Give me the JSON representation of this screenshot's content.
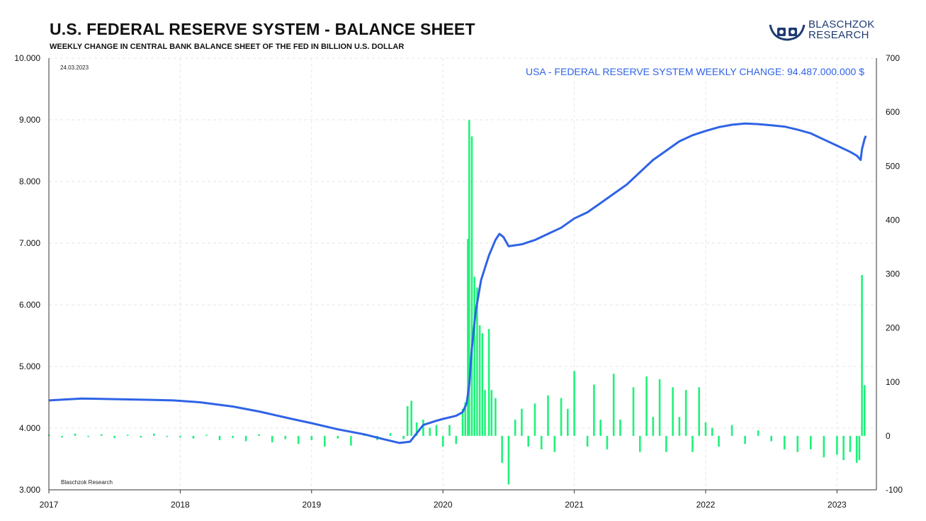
{
  "header": {
    "title": "U.S. FEDERAL RESERVE SYSTEM - BALANCE SHEET",
    "subtitle": "WEEKLY CHANGE IN CENTRAL BANK BALANCE SHEET OF THE FED IN BILLION U.S. DOLLAR"
  },
  "logo": {
    "line1": "BLASCHZOK",
    "line2": "RESEARCH",
    "icon": "blaschzok-logo-icon"
  },
  "chart_data": {
    "type": "bar",
    "date_label": "24.03.2023",
    "source_label": "Blaschzok Research",
    "annotation": "USA - FEDERAL RESERVE SYSTEM WEEKLY CHANGE: 94.487.000.000 $",
    "x_ticks": [
      "2017",
      "2018",
      "2019",
      "2020",
      "2021",
      "2022",
      "2023"
    ],
    "xlim": [
      2017.0,
      2023.3
    ],
    "y_left": {
      "ticks": [
        "3.000",
        "4.000",
        "5.000",
        "6.000",
        "7.000",
        "8.000",
        "9.000",
        "10.000"
      ],
      "range": [
        3000,
        10000
      ]
    },
    "y_right": {
      "ticks": [
        "-100",
        "0",
        "100",
        "200",
        "300",
        "400",
        "500",
        "600",
        "700"
      ],
      "range": [
        -100,
        700
      ]
    },
    "grid": true,
    "colors": {
      "bars": "#1ff27a",
      "line": "#2f63e6"
    },
    "series": [
      {
        "type": "line",
        "axis": "left",
        "points": [
          [
            2017.0,
            4450
          ],
          [
            2017.25,
            4480
          ],
          [
            2017.5,
            4470
          ],
          [
            2017.75,
            4460
          ],
          [
            2017.95,
            4450
          ],
          [
            2018.15,
            4420
          ],
          [
            2018.4,
            4350
          ],
          [
            2018.6,
            4270
          ],
          [
            2018.85,
            4150
          ],
          [
            2019.0,
            4080
          ],
          [
            2019.2,
            3980
          ],
          [
            2019.4,
            3900
          ],
          [
            2019.55,
            3820
          ],
          [
            2019.67,
            3760
          ],
          [
            2019.75,
            3780
          ],
          [
            2019.85,
            4050
          ],
          [
            2019.95,
            4120
          ],
          [
            2020.0,
            4150
          ],
          [
            2020.1,
            4200
          ],
          [
            2020.15,
            4260
          ],
          [
            2020.18,
            4400
          ],
          [
            2020.2,
            4700
          ],
          [
            2020.22,
            5300
          ],
          [
            2020.25,
            5900
          ],
          [
            2020.29,
            6400
          ],
          [
            2020.32,
            6600
          ],
          [
            2020.35,
            6800
          ],
          [
            2020.4,
            7050
          ],
          [
            2020.43,
            7150
          ],
          [
            2020.46,
            7100
          ],
          [
            2020.5,
            6950
          ],
          [
            2020.6,
            6980
          ],
          [
            2020.7,
            7050
          ],
          [
            2020.8,
            7150
          ],
          [
            2020.9,
            7250
          ],
          [
            2021.0,
            7400
          ],
          [
            2021.1,
            7500
          ],
          [
            2021.2,
            7650
          ],
          [
            2021.3,
            7800
          ],
          [
            2021.4,
            7950
          ],
          [
            2021.5,
            8150
          ],
          [
            2021.6,
            8350
          ],
          [
            2021.7,
            8500
          ],
          [
            2021.8,
            8650
          ],
          [
            2021.9,
            8750
          ],
          [
            2022.0,
            8820
          ],
          [
            2022.1,
            8880
          ],
          [
            2022.2,
            8920
          ],
          [
            2022.3,
            8940
          ],
          [
            2022.4,
            8930
          ],
          [
            2022.5,
            8910
          ],
          [
            2022.6,
            8890
          ],
          [
            2022.7,
            8840
          ],
          [
            2022.8,
            8780
          ],
          [
            2022.9,
            8680
          ],
          [
            2023.0,
            8580
          ],
          [
            2023.1,
            8480
          ],
          [
            2023.15,
            8420
          ],
          [
            2023.18,
            8350
          ],
          [
            2023.19,
            8520
          ],
          [
            2023.21,
            8690
          ],
          [
            2023.22,
            8740
          ]
        ]
      },
      {
        "type": "bar",
        "axis": "right",
        "points": [
          [
            2017.0,
            2
          ],
          [
            2017.1,
            -3
          ],
          [
            2017.2,
            4
          ],
          [
            2017.3,
            -2
          ],
          [
            2017.4,
            3
          ],
          [
            2017.5,
            -4
          ],
          [
            2017.6,
            2
          ],
          [
            2017.7,
            -3
          ],
          [
            2017.8,
            4
          ],
          [
            2017.9,
            -2
          ],
          [
            2018.0,
            -3
          ],
          [
            2018.1,
            -5
          ],
          [
            2018.2,
            2
          ],
          [
            2018.3,
            -8
          ],
          [
            2018.4,
            -4
          ],
          [
            2018.5,
            -10
          ],
          [
            2018.6,
            3
          ],
          [
            2018.7,
            -12
          ],
          [
            2018.8,
            -6
          ],
          [
            2018.9,
            -15
          ],
          [
            2019.0,
            -8
          ],
          [
            2019.1,
            -20
          ],
          [
            2019.2,
            -5
          ],
          [
            2019.3,
            -18
          ],
          [
            2019.4,
            4
          ],
          [
            2019.5,
            -8
          ],
          [
            2019.6,
            5
          ],
          [
            2019.7,
            -6
          ],
          [
            2019.73,
            55
          ],
          [
            2019.76,
            65
          ],
          [
            2019.8,
            25
          ],
          [
            2019.85,
            30
          ],
          [
            2019.9,
            15
          ],
          [
            2019.95,
            20
          ],
          [
            2020.0,
            -20
          ],
          [
            2020.05,
            20
          ],
          [
            2020.1,
            -15
          ],
          [
            2020.15,
            50
          ],
          [
            2020.17,
            62
          ],
          [
            2020.19,
            365
          ],
          [
            2020.2,
            585
          ],
          [
            2020.22,
            555
          ],
          [
            2020.24,
            295
          ],
          [
            2020.26,
            275
          ],
          [
            2020.28,
            205
          ],
          [
            2020.3,
            190
          ],
          [
            2020.32,
            85
          ],
          [
            2020.35,
            198
          ],
          [
            2020.37,
            85
          ],
          [
            2020.4,
            70
          ],
          [
            2020.45,
            -50
          ],
          [
            2020.5,
            -90
          ],
          [
            2020.55,
            30
          ],
          [
            2020.6,
            50
          ],
          [
            2020.65,
            -20
          ],
          [
            2020.7,
            60
          ],
          [
            2020.75,
            -25
          ],
          [
            2020.8,
            75
          ],
          [
            2020.85,
            -30
          ],
          [
            2020.9,
            70
          ],
          [
            2020.95,
            50
          ],
          [
            2021.0,
            120
          ],
          [
            2021.1,
            -20
          ],
          [
            2021.15,
            95
          ],
          [
            2021.2,
            30
          ],
          [
            2021.25,
            -25
          ],
          [
            2021.3,
            115
          ],
          [
            2021.35,
            30
          ],
          [
            2021.45,
            90
          ],
          [
            2021.5,
            -30
          ],
          [
            2021.55,
            110
          ],
          [
            2021.6,
            35
          ],
          [
            2021.65,
            105
          ],
          [
            2021.7,
            -30
          ],
          [
            2021.75,
            90
          ],
          [
            2021.8,
            35
          ],
          [
            2021.85,
            85
          ],
          [
            2021.9,
            -30
          ],
          [
            2021.95,
            90
          ],
          [
            2022.0,
            25
          ],
          [
            2022.05,
            15
          ],
          [
            2022.1,
            -20
          ],
          [
            2022.2,
            20
          ],
          [
            2022.3,
            -15
          ],
          [
            2022.4,
            10
          ],
          [
            2022.5,
            -10
          ],
          [
            2022.6,
            -25
          ],
          [
            2022.7,
            -30
          ],
          [
            2022.8,
            -25
          ],
          [
            2022.9,
            -40
          ],
          [
            2023.0,
            -35
          ],
          [
            2023.05,
            -45
          ],
          [
            2023.1,
            -30
          ],
          [
            2023.15,
            -50
          ],
          [
            2023.17,
            -45
          ],
          [
            2023.19,
            298
          ],
          [
            2023.21,
            94
          ]
        ]
      }
    ]
  }
}
